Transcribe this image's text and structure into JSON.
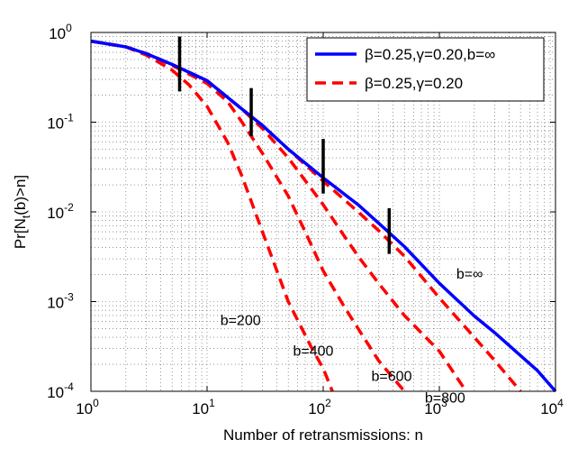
{
  "chart_data": {
    "type": "line",
    "x_scale": "log",
    "y_scale": "log",
    "xlim": [
      1,
      10000
    ],
    "ylim": [
      0.0001,
      1
    ],
    "grid": true,
    "legend_placement": "top-right",
    "xlabel": "Number of retransmissions: n",
    "ylabel_main": "Pr[N",
    "ylabel_sub": "t",
    "ylabel_rest": "(b)>n]",
    "x_ticks": [
      {
        "value": 1,
        "base": "10",
        "exp": "0"
      },
      {
        "value": 10,
        "base": "10",
        "exp": "1"
      },
      {
        "value": 100,
        "base": "10",
        "exp": "2"
      },
      {
        "value": 1000,
        "base": "10",
        "exp": "3"
      },
      {
        "value": 10000,
        "base": "10",
        "exp": "4"
      }
    ],
    "y_ticks": [
      {
        "value": 1,
        "base": "10",
        "exp": "0"
      },
      {
        "value": 0.1,
        "base": "10",
        "exp": "-1"
      },
      {
        "value": 0.01,
        "base": "10",
        "exp": "-2"
      },
      {
        "value": 0.001,
        "base": "10",
        "exp": "-3"
      },
      {
        "value": 0.0001,
        "base": "10",
        "exp": "-4"
      }
    ],
    "series": [
      {
        "name": "β=0.25,γ=0.20,b=∞",
        "color": "#0000ff",
        "style": "solid",
        "points": [
          [
            1,
            0.8
          ],
          [
            2,
            0.69
          ],
          [
            3,
            0.58
          ],
          [
            5,
            0.44
          ],
          [
            10,
            0.29
          ],
          [
            20,
            0.14
          ],
          [
            30,
            0.092
          ],
          [
            50,
            0.05
          ],
          [
            100,
            0.024
          ],
          [
            200,
            0.012
          ],
          [
            300,
            0.0075
          ],
          [
            500,
            0.0041
          ],
          [
            1000,
            0.0016
          ],
          [
            2000,
            0.00069
          ],
          [
            3000,
            0.00045
          ],
          [
            5000,
            0.00025
          ],
          [
            7000,
            0.00017
          ],
          [
            10000,
            0.0001
          ]
        ]
      },
      {
        "name": "β=0.25,γ=0.20",
        "color": "#ff0000",
        "style": "dashed",
        "curves": [
          {
            "b": "200",
            "points": [
              [
                1,
                0.8
              ],
              [
                2,
                0.69
              ],
              [
                3,
                0.56
              ],
              [
                5,
                0.38
              ],
              [
                7,
                0.26
              ],
              [
                10,
                0.15
              ],
              [
                15,
                0.06
              ],
              [
                20,
                0.025
              ],
              [
                30,
                0.006
              ],
              [
                50,
                0.001
              ],
              [
                80,
                0.0003
              ],
              [
                100,
                0.00018
              ],
              [
                120,
                0.0001
              ]
            ]
          },
          {
            "b": "400",
            "points": [
              [
                1,
                0.8
              ],
              [
                2,
                0.69
              ],
              [
                3,
                0.58
              ],
              [
                5,
                0.43
              ],
              [
                10,
                0.27
              ],
              [
                15,
                0.17
              ],
              [
                20,
                0.1
              ],
              [
                30,
                0.045
              ],
              [
                50,
                0.015
              ],
              [
                70,
                0.006
              ],
              [
                100,
                0.0022
              ],
              [
                150,
                0.0009
              ],
              [
                200,
                0.0005
              ],
              [
                300,
                0.00022
              ],
              [
                500,
                0.0001
              ]
            ]
          },
          {
            "b": "600",
            "points": [
              [
                1,
                0.8
              ],
              [
                2,
                0.69
              ],
              [
                3,
                0.58
              ],
              [
                5,
                0.44
              ],
              [
                10,
                0.29
              ],
              [
                20,
                0.14
              ],
              [
                30,
                0.085
              ],
              [
                50,
                0.04
              ],
              [
                100,
                0.012
              ],
              [
                150,
                0.0055
              ],
              [
                200,
                0.0032
              ],
              [
                300,
                0.0016
              ],
              [
                500,
                0.0007
              ],
              [
                1000,
                0.00028
              ],
              [
                1700,
                0.0001
              ]
            ]
          },
          {
            "b": "800",
            "points": [
              [
                1,
                0.8
              ],
              [
                2,
                0.69
              ],
              [
                3,
                0.58
              ],
              [
                5,
                0.44
              ],
              [
                10,
                0.29
              ],
              [
                20,
                0.14
              ],
              [
                30,
                0.092
              ],
              [
                50,
                0.05
              ],
              [
                100,
                0.022
              ],
              [
                200,
                0.01
              ],
              [
                300,
                0.0062
              ],
              [
                500,
                0.0032
              ],
              [
                1000,
                0.0011
              ],
              [
                2000,
                0.0004
              ],
              [
                3000,
                0.00022
              ],
              [
                5000,
                0.0001
              ]
            ]
          }
        ]
      }
    ],
    "markers": [
      {
        "x": 5.8,
        "y_low": 0.22,
        "y_high": 0.9
      },
      {
        "x": 24,
        "y_low": 0.07,
        "y_high": 0.24
      },
      {
        "x": 100,
        "y_low": 0.016,
        "y_high": 0.065
      },
      {
        "x": 370,
        "y_low": 0.0034,
        "y_high": 0.011
      }
    ],
    "annotations": [
      {
        "text": "b=∞",
        "x": 1400,
        "y": 0.0018
      },
      {
        "text": "b=200",
        "x": 13,
        "y": 0.00055
      },
      {
        "text": "b=400",
        "x": 55,
        "y": 0.00025
      },
      {
        "text": "b=600",
        "x": 260,
        "y": 0.00013
      },
      {
        "text": "b=800",
        "x": 750,
        "y": 7.5e-05
      }
    ]
  }
}
